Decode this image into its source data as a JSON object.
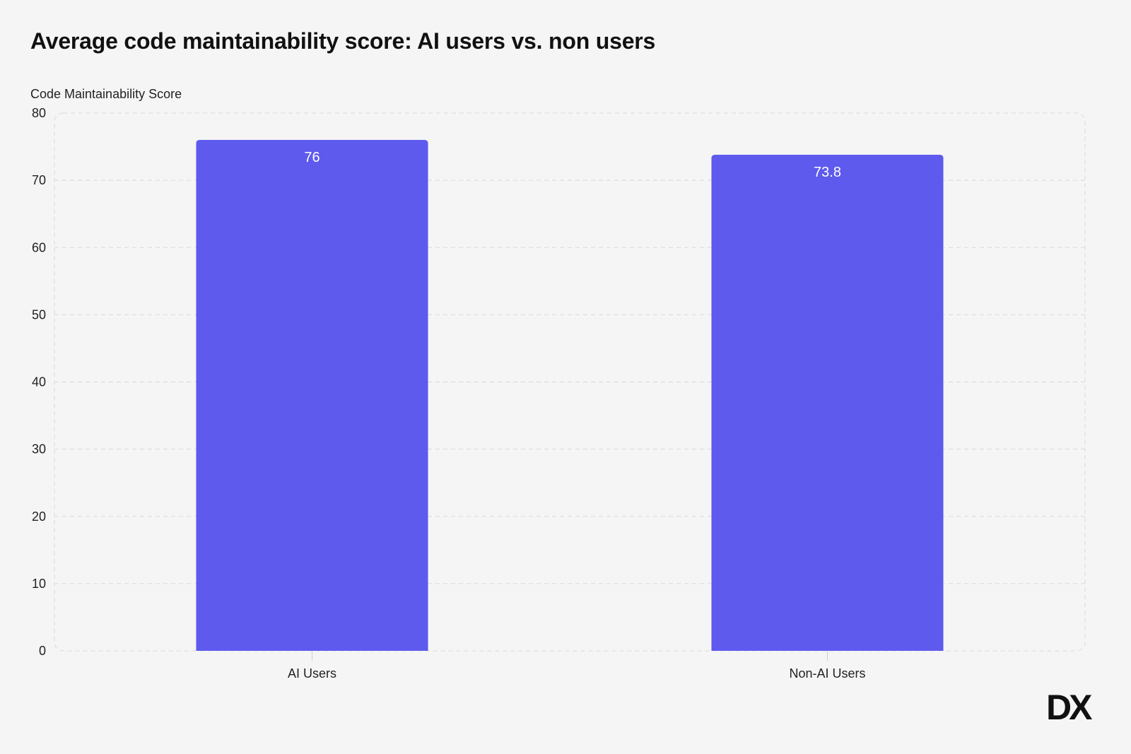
{
  "chart_data": {
    "type": "bar",
    "title": "Average code maintainability score: AI users vs. non users",
    "xlabel": "",
    "ylabel": "Code Maintainability Score",
    "categories": [
      "AI Users",
      "Non-AI Users"
    ],
    "values": [
      76,
      73.8
    ],
    "data_labels": [
      "76",
      "73.8"
    ],
    "ylim": [
      0,
      80
    ],
    "yticks": [
      0,
      10,
      20,
      30,
      40,
      50,
      60,
      70,
      80
    ],
    "grid": true,
    "legend": "none",
    "bar_color": "#5e5aee"
  },
  "brand": {
    "logo_icon": "dx-logo-icon",
    "logo_text": "DX",
    "color": "#111111"
  }
}
